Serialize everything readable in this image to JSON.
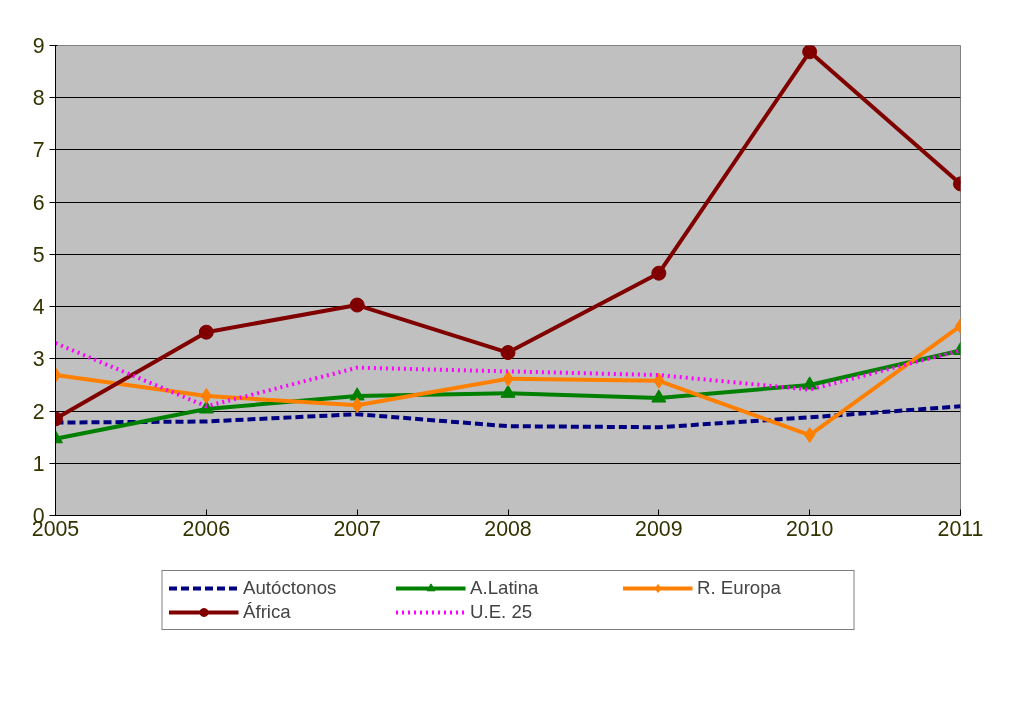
{
  "chart_data": {
    "type": "line",
    "x": [
      2005,
      2006,
      2007,
      2008,
      2009,
      2010,
      2011
    ],
    "xlim": [
      2005,
      2011
    ],
    "xticks": [
      2005,
      2006,
      2007,
      2008,
      2009,
      2010,
      2011
    ],
    "ylim": [
      0,
      9
    ],
    "yticks": [
      0,
      1,
      2,
      3,
      4,
      5,
      6,
      7,
      8,
      9
    ],
    "grid": "y",
    "legend": "bottom",
    "series": [
      {
        "name": "Autóctonos",
        "color": "#000080",
        "marker": "none",
        "line_style": "dashed",
        "values": [
          1.78,
          1.8,
          1.94,
          1.71,
          1.69,
          1.88,
          2.09
        ]
      },
      {
        "name": "A.Latina",
        "color": "#008000",
        "marker": "triangle",
        "line_style": "solid",
        "values": [
          1.47,
          2.04,
          2.29,
          2.34,
          2.25,
          2.5,
          3.16
        ]
      },
      {
        "name": "R. Europa",
        "color": "#ff8000",
        "marker": "diamond",
        "line_style": "solid",
        "values": [
          2.69,
          2.29,
          2.11,
          2.62,
          2.58,
          1.54,
          3.63
        ]
      },
      {
        "name": "África",
        "color": "#800000",
        "marker": "circle",
        "line_style": "solid",
        "values": [
          1.85,
          3.51,
          4.03,
          3.12,
          4.64,
          8.88,
          6.35
        ]
      },
      {
        "name": "U.E. 25",
        "color": "#ff00ff",
        "marker": "none",
        "line_style": "dotted",
        "values": [
          3.3,
          2.09,
          2.83,
          2.76,
          2.69,
          2.41,
          3.16
        ]
      }
    ]
  }
}
